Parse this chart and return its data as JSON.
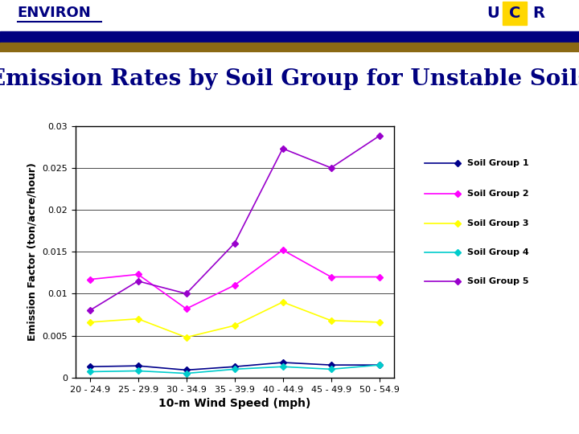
{
  "title": "Emission Rates by Soil Group for Unstable Soils",
  "xlabel": "10-m Wind Speed (mph)",
  "ylabel": "Emission Factor (ton/acre/hour)",
  "x_labels": [
    "20 - 24.9",
    "25 - 29.9",
    "30 - 34.9",
    "35 - 39.9",
    "40 - 44.9",
    "45 - 49.9",
    "50 - 54.9"
  ],
  "soil_group_1": [
    0.0013,
    0.0014,
    0.0009,
    0.0013,
    0.0018,
    0.0015,
    0.0015
  ],
  "soil_group_2": [
    0.0117,
    0.0123,
    0.0082,
    0.011,
    0.0152,
    0.012,
    0.012
  ],
  "soil_group_3": [
    0.0066,
    0.007,
    0.0048,
    0.0062,
    0.009,
    0.0068,
    0.0066
  ],
  "soil_group_4": [
    0.0007,
    0.0008,
    0.0005,
    0.001,
    0.0013,
    0.001,
    0.0015
  ],
  "soil_group_5": [
    0.008,
    0.0115,
    0.01,
    0.016,
    0.0273,
    0.025,
    0.0288
  ],
  "color_1": "#00008B",
  "color_2": "#FF00FF",
  "color_3": "#FFFF00",
  "color_4": "#00CCCC",
  "color_5": "#9900CC",
  "ylim": [
    0,
    0.03
  ],
  "yticks": [
    0,
    0.005,
    0.01,
    0.015,
    0.02,
    0.025,
    0.03
  ],
  "background_color": "#FFFFFF",
  "header_bar_color1": "#000080",
  "header_bar_color2": "#8B6914",
  "title_color": "#000080",
  "title_fontsize": 20
}
